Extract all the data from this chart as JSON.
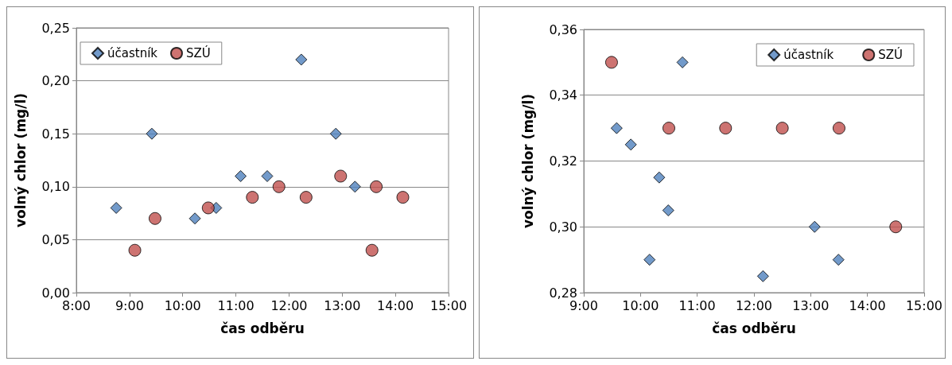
{
  "chart_data": [
    {
      "type": "scatter",
      "xlabel": "čas odběru",
      "ylabel": "volný chlor (mg/l)",
      "xlim": [
        8,
        15
      ],
      "xticks": [
        {
          "value": 8,
          "label": "8:00"
        },
        {
          "value": 9,
          "label": "9:00"
        },
        {
          "value": 10,
          "label": "10:00"
        },
        {
          "value": 11,
          "label": "11:00"
        },
        {
          "value": 12,
          "label": "12:00"
        },
        {
          "value": 13,
          "label": "13:00"
        },
        {
          "value": 14,
          "label": "14:00"
        },
        {
          "value": 15,
          "label": "15:00"
        }
      ],
      "ylim": [
        0,
        0.25
      ],
      "yticks": [
        {
          "value": 0,
          "label": "0,00"
        },
        {
          "value": 0.05,
          "label": "0,05"
        },
        {
          "value": 0.1,
          "label": "0,10"
        },
        {
          "value": 0.15,
          "label": "0,15"
        },
        {
          "value": 0.2,
          "label": "0,20"
        },
        {
          "value": 0.25,
          "label": "0,25"
        }
      ],
      "grid": "y",
      "legend": "top left",
      "series": [
        {
          "name": "účastník",
          "color": "#4f81bd",
          "marker": "diamond",
          "x": [
            8.75,
            9.42,
            10.23,
            10.63,
            11.09,
            11.59,
            12.23,
            12.88,
            13.24
          ],
          "values": [
            0.08,
            0.15,
            0.07,
            0.08,
            0.11,
            0.11,
            0.22,
            0.15,
            0.1
          ]
        },
        {
          "name": "SZÚ",
          "color": "#c0504d",
          "marker": "circle",
          "x": [
            9.1,
            9.48,
            10.48,
            11.31,
            11.81,
            12.32,
            12.97,
            13.56,
            13.64,
            14.14
          ],
          "values": [
            0.04,
            0.07,
            0.08,
            0.09,
            0.1,
            0.09,
            0.11,
            0.04,
            0.1,
            0.09
          ]
        }
      ]
    },
    {
      "type": "scatter",
      "xlabel": "čas odběru",
      "ylabel": "volný chlor (mg/l)",
      "xlim": [
        9,
        15
      ],
      "xticks": [
        {
          "value": 9,
          "label": "9:00"
        },
        {
          "value": 10,
          "label": "10:00"
        },
        {
          "value": 11,
          "label": "11:00"
        },
        {
          "value": 12,
          "label": "12:00"
        },
        {
          "value": 13,
          "label": "13:00"
        },
        {
          "value": 14,
          "label": "14:00"
        },
        {
          "value": 15,
          "label": "15:00"
        }
      ],
      "ylim": [
        0.28,
        0.36
      ],
      "yticks": [
        {
          "value": 0.28,
          "label": "0,28"
        },
        {
          "value": 0.3,
          "label": "0,30"
        },
        {
          "value": 0.32,
          "label": "0,32"
        },
        {
          "value": 0.34,
          "label": "0,34"
        },
        {
          "value": 0.36,
          "label": "0,36"
        }
      ],
      "grid": "y",
      "legend": "top right",
      "series": [
        {
          "name": "účastník",
          "color": "#4f81bd",
          "marker": "diamond",
          "x": [
            9.58,
            9.83,
            10.16,
            10.33,
            10.49,
            10.74,
            12.16,
            13.07,
            13.49
          ],
          "values": [
            0.33,
            0.325,
            0.29,
            0.315,
            0.305,
            0.35,
            0.285,
            0.3,
            0.29
          ]
        },
        {
          "name": "SZÚ",
          "color": "#c0504d",
          "marker": "circle",
          "x": [
            9.49,
            10.5,
            11.5,
            12.5,
            13.5,
            14.5
          ],
          "values": [
            0.35,
            0.33,
            0.33,
            0.33,
            0.33,
            0.3
          ]
        }
      ]
    }
  ]
}
